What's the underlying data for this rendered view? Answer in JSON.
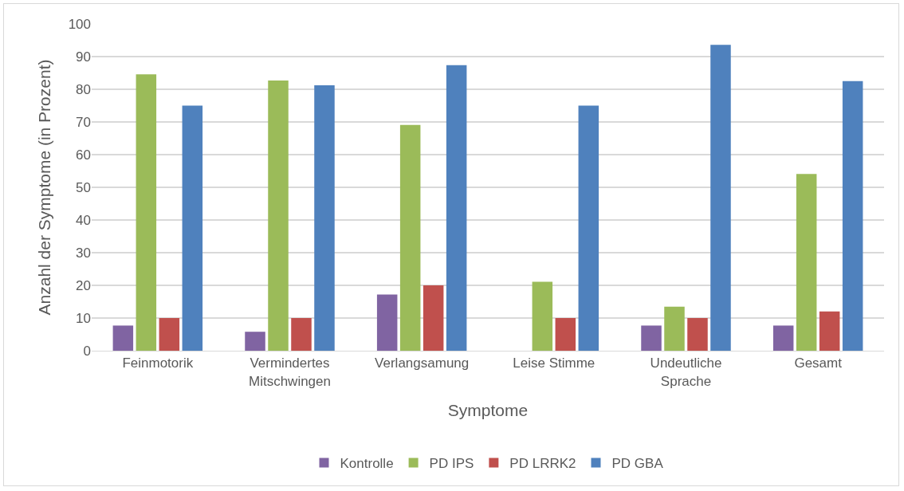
{
  "chart_data": {
    "type": "bar",
    "xlabel": "Symptome",
    "ylabel": "Anzahl der Symptome (in Prozent)",
    "categories": [
      "Feinmotorik",
      "Vermindertes Mitschwingen",
      "Verlangsamung",
      "Leise Stimme",
      "Undeutliche Sprache",
      "Gesamt"
    ],
    "series": [
      {
        "name": "Kontrolle",
        "color": "#8064a2",
        "values": [
          7.7,
          5.8,
          17.2,
          0,
          7.7,
          7.7
        ]
      },
      {
        "name": "PD IPS",
        "color": "#9bbb59",
        "values": [
          84.6,
          82.7,
          69.1,
          21.1,
          13.5,
          54.1
        ]
      },
      {
        "name": "PD LRRK2",
        "color": "#c0504d",
        "values": [
          10,
          10,
          20,
          10,
          10,
          12
        ]
      },
      {
        "name": "PD GBA",
        "color": "#4f81bd",
        "values": [
          75,
          81.2,
          87.4,
          75,
          93.6,
          82.5
        ]
      }
    ],
    "ylim": [
      0,
      100
    ],
    "yticks": [
      0,
      10,
      20,
      30,
      40,
      50,
      60,
      70,
      80,
      90,
      100
    ],
    "grid": "y",
    "legend": "bottom"
  }
}
